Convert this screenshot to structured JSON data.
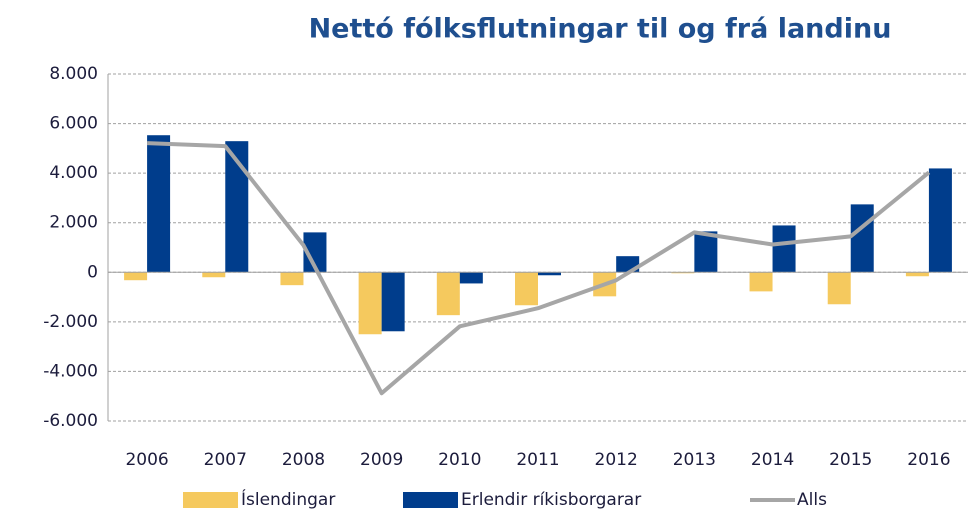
{
  "chart_data": {
    "type": "bar",
    "title": "Nettó fólksflutningar til og frá landinu",
    "categories": [
      "2006",
      "2007",
      "2008",
      "2009",
      "2010",
      "2011",
      "2012",
      "2013",
      "2014",
      "2015",
      "2016"
    ],
    "series": [
      {
        "name": "Íslendingar",
        "color": "#f5c95e",
        "type": "bar",
        "values": [
          -320,
          -200,
          -520,
          -2500,
          -1730,
          -1330,
          -970,
          -40,
          -770,
          -1290,
          -160
        ]
      },
      {
        "name": "Erlendir ríkisborgarar",
        "color": "#003d8c",
        "type": "bar",
        "values": [
          5530,
          5290,
          1610,
          -2380,
          -450,
          -120,
          650,
          1650,
          1890,
          2740,
          4190
        ]
      },
      {
        "name": "Alls",
        "color": "#a6a6a6",
        "type": "line",
        "values": [
          5210,
          5090,
          1090,
          -4880,
          -2180,
          -1450,
          -320,
          1610,
          1120,
          1450,
          4030
        ]
      }
    ],
    "ylim": [
      -6000,
      8000
    ],
    "yticks": [
      {
        "value": -6000,
        "label": "-6.000"
      },
      {
        "value": -4000,
        "label": "-4.000"
      },
      {
        "value": -2000,
        "label": "-2.000"
      },
      0,
      {
        "value": 2000,
        "label": "2.000"
      },
      {
        "value": 4000,
        "label": "4.000"
      },
      {
        "value": 6000,
        "label": "6.000"
      },
      {
        "value": 8000,
        "label": "8.000"
      }
    ],
    "grid": true,
    "legend": "bottom"
  }
}
